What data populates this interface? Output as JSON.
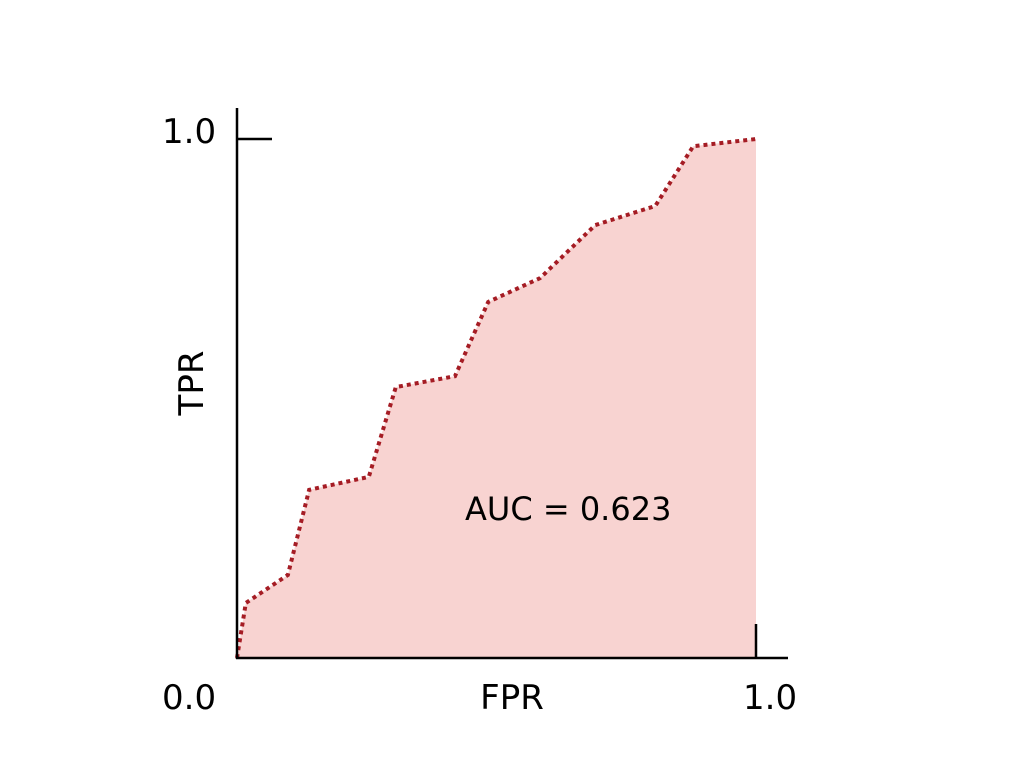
{
  "chart_data": {
    "type": "area",
    "xlabel": "FPR",
    "ylabel": "TPR",
    "xlim": [
      0,
      1
    ],
    "ylim": [
      0,
      1
    ],
    "x_tick_labels": [
      "0.0",
      "1.0"
    ],
    "y_tick_labels": [
      "1.0"
    ],
    "annotation": "AUC = 0.623",
    "grid": false,
    "x": [
      0,
      0.017,
      0.098,
      0.139,
      0.254,
      0.306,
      0.42,
      0.484,
      0.584,
      0.69,
      0.806,
      0.879,
      1.0
    ],
    "y": [
      0,
      0.106,
      0.16,
      0.324,
      0.349,
      0.522,
      0.543,
      0.686,
      0.732,
      0.834,
      0.871,
      0.986,
      1.0
    ],
    "line_color": "#a51c24",
    "fill_color": "#f8d3d1",
    "line_style": "dotted"
  }
}
